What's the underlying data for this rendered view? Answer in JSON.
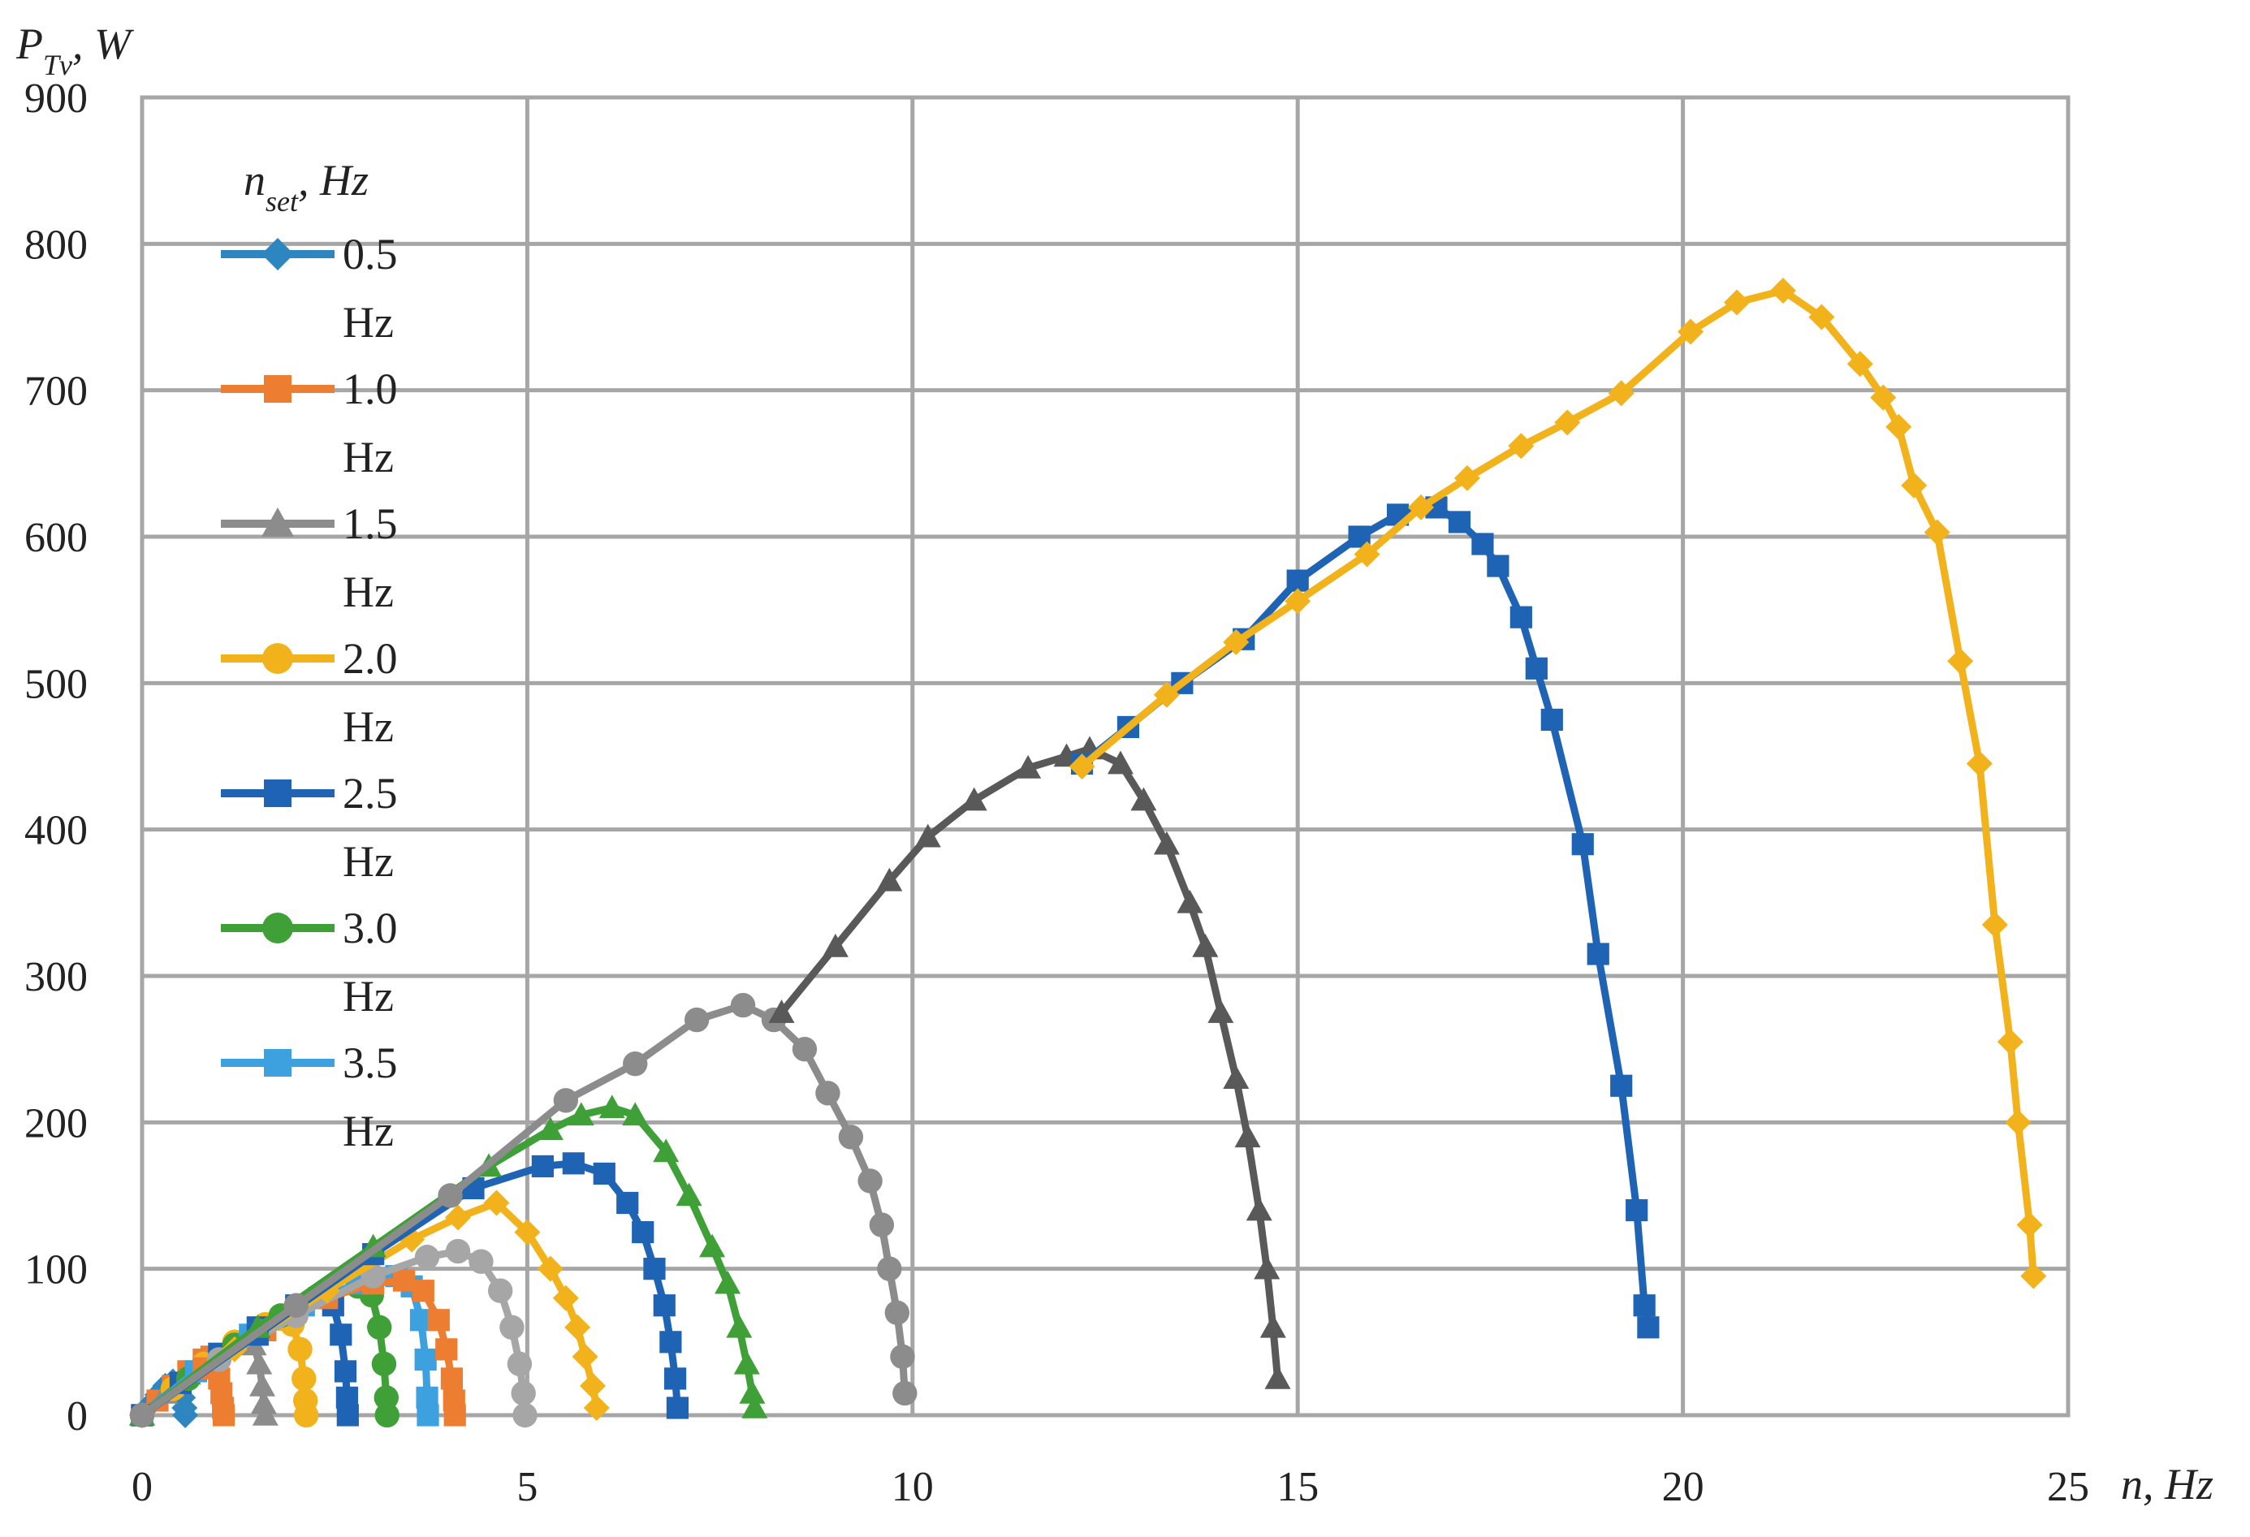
{
  "chart_data": {
    "type": "line",
    "title": "",
    "ylabel": {
      "main": "P",
      "sub": "Tv",
      "unit": ", W"
    },
    "xlabel": "n, Hz",
    "xlim": [
      0,
      25
    ],
    "ylim": [
      0,
      900
    ],
    "x_ticks": [
      "0",
      "5",
      "10",
      "15",
      "20",
      "25"
    ],
    "y_ticks": [
      "0",
      "100",
      "200",
      "300",
      "400",
      "500",
      "600",
      "700",
      "800",
      "900"
    ],
    "grid": true,
    "legend": {
      "title": {
        "main": "n",
        "sub": "set",
        "unit": ", Hz"
      },
      "position": "top-left"
    },
    "series": [
      {
        "name": "0.5 Hz",
        "name_line1": "0.5",
        "name_line2": "Hz",
        "color": "#2e86c1",
        "marker": "diamond",
        "points": [
          [
            0,
            0
          ],
          [
            0.1,
            7
          ],
          [
            0.2,
            14
          ],
          [
            0.3,
            20
          ],
          [
            0.4,
            23
          ],
          [
            0.47,
            22
          ],
          [
            0.5,
            18
          ],
          [
            0.53,
            12
          ],
          [
            0.55,
            5
          ],
          [
            0.56,
            0
          ]
        ]
      },
      {
        "name": "1.0 Hz",
        "name_line1": "1.0",
        "name_line2": "Hz",
        "color": "#ed7d31",
        "marker": "square",
        "points": [
          [
            0,
            0
          ],
          [
            0.2,
            10
          ],
          [
            0.4,
            20
          ],
          [
            0.6,
            30
          ],
          [
            0.8,
            38
          ],
          [
            0.9,
            40
          ],
          [
            0.97,
            35
          ],
          [
            1.0,
            25
          ],
          [
            1.03,
            15
          ],
          [
            1.05,
            5
          ],
          [
            1.06,
            0
          ]
        ]
      },
      {
        "name": "1.5 Hz",
        "name_line1": "1.5",
        "name_line2": "Hz",
        "color": "#8c8c8c",
        "marker": "triangle",
        "points": [
          [
            0,
            0
          ],
          [
            0.3,
            15
          ],
          [
            0.6,
            28
          ],
          [
            0.9,
            40
          ],
          [
            1.2,
            50
          ],
          [
            1.35,
            53
          ],
          [
            1.45,
            48
          ],
          [
            1.52,
            35
          ],
          [
            1.56,
            20
          ],
          [
            1.58,
            8
          ],
          [
            1.6,
            0
          ]
        ]
      },
      {
        "name": "2.0 Hz",
        "name_line1": "2.0",
        "name_line2": "Hz",
        "color": "#f2b21c",
        "marker": "circle",
        "points": [
          [
            0,
            0
          ],
          [
            0.4,
            18
          ],
          [
            0.8,
            35
          ],
          [
            1.2,
            50
          ],
          [
            1.6,
            62
          ],
          [
            1.8,
            66
          ],
          [
            1.95,
            62
          ],
          [
            2.05,
            45
          ],
          [
            2.1,
            25
          ],
          [
            2.12,
            10
          ],
          [
            2.13,
            0
          ]
        ]
      },
      {
        "name": "2.5 Hz",
        "name_line1": "2.5",
        "name_line2": "Hz",
        "color": "#1f64b4",
        "marker": "square",
        "points": [
          [
            0,
            0
          ],
          [
            0.5,
            22
          ],
          [
            1.0,
            42
          ],
          [
            1.5,
            60
          ],
          [
            2.0,
            75
          ],
          [
            2.3,
            80
          ],
          [
            2.48,
            75
          ],
          [
            2.58,
            55
          ],
          [
            2.64,
            30
          ],
          [
            2.66,
            12
          ],
          [
            2.67,
            0
          ]
        ]
      },
      {
        "name": "3.0 Hz",
        "name_line1": "3.0",
        "name_line2": "Hz",
        "color": "#3fa037",
        "marker": "circle",
        "points": [
          [
            0,
            0
          ],
          [
            0.6,
            25
          ],
          [
            1.2,
            48
          ],
          [
            1.8,
            68
          ],
          [
            2.4,
            83
          ],
          [
            2.8,
            88
          ],
          [
            2.98,
            82
          ],
          [
            3.08,
            60
          ],
          [
            3.14,
            35
          ],
          [
            3.17,
            12
          ],
          [
            3.18,
            0
          ]
        ]
      },
      {
        "name": "3.5 Hz",
        "name_line1": "3.5",
        "name_line2": "Hz",
        "color": "#3da1e0",
        "marker": "square",
        "points": [
          [
            0,
            0
          ],
          [
            0.7,
            30
          ],
          [
            1.4,
            55
          ],
          [
            2.1,
            75
          ],
          [
            2.8,
            90
          ],
          [
            3.3,
            95
          ],
          [
            3.5,
            88
          ],
          [
            3.62,
            65
          ],
          [
            3.68,
            38
          ],
          [
            3.7,
            12
          ],
          [
            3.71,
            0
          ]
        ]
      },
      {
        "name": "",
        "color": "#ed7d31",
        "marker": "square",
        "points": [
          [
            0,
            0
          ],
          [
            0.8,
            32
          ],
          [
            1.6,
            58
          ],
          [
            2.4,
            80
          ],
          [
            3.0,
            90
          ],
          [
            3.4,
            92
          ],
          [
            3.65,
            85
          ],
          [
            3.85,
            65
          ],
          [
            3.95,
            45
          ],
          [
            4.02,
            25
          ],
          [
            4.05,
            10
          ],
          [
            4.06,
            0
          ]
        ]
      },
      {
        "name": "",
        "color": "#a6a6a6",
        "marker": "circle",
        "points": [
          [
            0,
            0
          ],
          [
            1,
            38
          ],
          [
            2,
            68
          ],
          [
            3,
            95
          ],
          [
            3.7,
            108
          ],
          [
            4.1,
            112
          ],
          [
            4.4,
            105
          ],
          [
            4.65,
            85
          ],
          [
            4.8,
            60
          ],
          [
            4.9,
            35
          ],
          [
            4.95,
            15
          ],
          [
            4.97,
            0
          ]
        ]
      },
      {
        "name": "",
        "color": "#f2b21c",
        "marker": "diamond",
        "points": [
          [
            0,
            0
          ],
          [
            1.2,
            45
          ],
          [
            2.4,
            85
          ],
          [
            3.5,
            120
          ],
          [
            4.1,
            135
          ],
          [
            4.6,
            145
          ],
          [
            5.0,
            125
          ],
          [
            5.3,
            100
          ],
          [
            5.5,
            80
          ],
          [
            5.65,
            60
          ],
          [
            5.75,
            40
          ],
          [
            5.85,
            20
          ],
          [
            5.9,
            5
          ]
        ]
      },
      {
        "name": "",
        "color": "#1f64b4",
        "marker": "square",
        "points": [
          [
            0,
            0
          ],
          [
            1.5,
            55
          ],
          [
            3,
            110
          ],
          [
            4.3,
            155
          ],
          [
            5.2,
            170
          ],
          [
            5.6,
            172
          ],
          [
            6.0,
            165
          ],
          [
            6.3,
            145
          ],
          [
            6.5,
            125
          ],
          [
            6.65,
            100
          ],
          [
            6.78,
            75
          ],
          [
            6.86,
            50
          ],
          [
            6.92,
            25
          ],
          [
            6.95,
            5
          ]
        ]
      },
      {
        "name": "",
        "color": "#3fa037",
        "marker": "triangle",
        "points": [
          [
            0,
            0
          ],
          [
            1.5,
            60
          ],
          [
            3,
            115
          ],
          [
            4.5,
            170
          ],
          [
            5.3,
            195
          ],
          [
            5.7,
            205
          ],
          [
            6.1,
            210
          ],
          [
            6.4,
            205
          ],
          [
            6.8,
            180
          ],
          [
            7.1,
            150
          ],
          [
            7.4,
            115
          ],
          [
            7.6,
            90
          ],
          [
            7.75,
            60
          ],
          [
            7.85,
            35
          ],
          [
            7.92,
            15
          ],
          [
            7.95,
            5
          ]
        ]
      },
      {
        "name": "",
        "color": "#8c8c8c",
        "marker": "circle",
        "points": [
          [
            0,
            0
          ],
          [
            2,
            75
          ],
          [
            4,
            150
          ],
          [
            5.5,
            215
          ],
          [
            6.4,
            240
          ],
          [
            7.2,
            270
          ],
          [
            7.8,
            280
          ],
          [
            8.2,
            270
          ],
          [
            8.6,
            250
          ],
          [
            8.9,
            220
          ],
          [
            9.2,
            190
          ],
          [
            9.45,
            160
          ],
          [
            9.6,
            130
          ],
          [
            9.7,
            100
          ],
          [
            9.8,
            70
          ],
          [
            9.87,
            40
          ],
          [
            9.9,
            15
          ]
        ]
      },
      {
        "name": "",
        "color": "#595959",
        "marker": "triangle",
        "points": [
          [
            8.3,
            275
          ],
          [
            9,
            320
          ],
          [
            9.7,
            365
          ],
          [
            10.2,
            395
          ],
          [
            10.8,
            420
          ],
          [
            11.5,
            442
          ],
          [
            12,
            450
          ],
          [
            12.3,
            455
          ],
          [
            12.7,
            445
          ],
          [
            13.0,
            420
          ],
          [
            13.3,
            390
          ],
          [
            13.6,
            350
          ],
          [
            13.8,
            320
          ],
          [
            14.0,
            275
          ],
          [
            14.2,
            230
          ],
          [
            14.35,
            190
          ],
          [
            14.5,
            140
          ],
          [
            14.6,
            100
          ],
          [
            14.68,
            60
          ],
          [
            14.74,
            25
          ]
        ]
      },
      {
        "name": "",
        "color": "#1f64b4",
        "marker": "square",
        "points": [
          [
            12.2,
            445
          ],
          [
            12.8,
            470
          ],
          [
            13.5,
            500
          ],
          [
            14.3,
            530
          ],
          [
            15.0,
            570
          ],
          [
            15.8,
            600
          ],
          [
            16.3,
            615
          ],
          [
            16.8,
            620
          ],
          [
            17.1,
            610
          ],
          [
            17.4,
            595
          ],
          [
            17.6,
            580
          ],
          [
            17.9,
            545
          ],
          [
            18.1,
            510
          ],
          [
            18.3,
            475
          ],
          [
            18.7,
            390
          ],
          [
            18.9,
            315
          ],
          [
            19.2,
            225
          ],
          [
            19.4,
            140
          ],
          [
            19.5,
            75
          ],
          [
            19.55,
            60
          ]
        ]
      },
      {
        "name": "",
        "color": "#f2b21c",
        "marker": "diamond",
        "points": [
          [
            12.2,
            443
          ],
          [
            13.3,
            492
          ],
          [
            14.2,
            528
          ],
          [
            15.0,
            556
          ],
          [
            15.9,
            588
          ],
          [
            16.6,
            620
          ],
          [
            17.2,
            640
          ],
          [
            17.9,
            662
          ],
          [
            18.5,
            678
          ],
          [
            19.2,
            698
          ],
          [
            20.1,
            740
          ],
          [
            20.7,
            760
          ],
          [
            21.3,
            768
          ],
          [
            21.8,
            750
          ],
          [
            22.3,
            718
          ],
          [
            22.6,
            695
          ],
          [
            22.8,
            675
          ],
          [
            23.0,
            635
          ],
          [
            23.3,
            603
          ],
          [
            23.6,
            515
          ],
          [
            23.85,
            445
          ],
          [
            24.05,
            335
          ],
          [
            24.25,
            255
          ],
          [
            24.35,
            200
          ],
          [
            24.5,
            130
          ],
          [
            24.55,
            95
          ]
        ]
      }
    ]
  }
}
